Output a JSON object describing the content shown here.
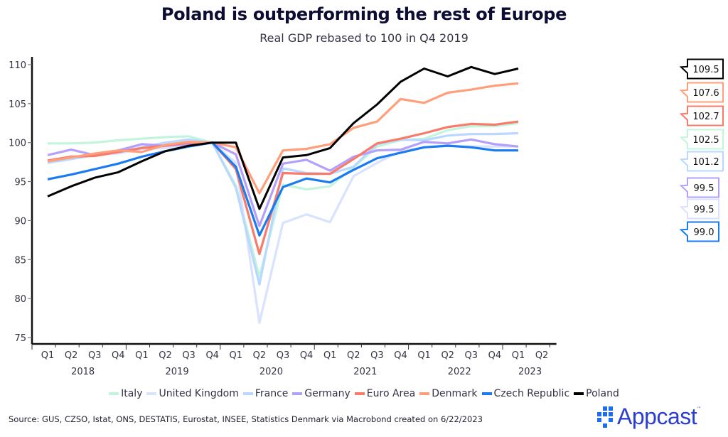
{
  "title": "Poland is outperforming the rest of Europe",
  "subtitle": "Real GDP rebased to 100 in Q4 2019",
  "source": "Source: GUS, CZSO, Istat, ONS, DESTATIS, Eurostat, INSEE, Statistics Denmark via Macrobond created on 6/22/2023",
  "logo": {
    "text": "Appcast",
    "tm": "™"
  },
  "chart_data": {
    "type": "line",
    "title": "Poland is outperforming the rest of Europe",
    "subtitle": "Real GDP rebased to 100 in Q4 2019",
    "xlabel": "",
    "ylabel": "",
    "ylim": [
      75,
      110
    ],
    "yticks": [
      75,
      80,
      85,
      90,
      95,
      100,
      105,
      110
    ],
    "grid": false,
    "legend_position": "bottom",
    "x": [
      "Q1 2018",
      "Q2 2018",
      "Q3 2018",
      "Q4 2018",
      "Q1 2019",
      "Q2 2019",
      "Q3 2019",
      "Q4 2019",
      "Q1 2020",
      "Q2 2020",
      "Q3 2020",
      "Q4 2020",
      "Q1 2021",
      "Q2 2021",
      "Q3 2021",
      "Q4 2021",
      "Q1 2022",
      "Q2 2022",
      "Q3 2022",
      "Q4 2022",
      "Q1 2023"
    ],
    "quarter_labels": [
      "Q1",
      "Q2",
      "Q3",
      "Q4",
      "Q1",
      "Q2",
      "Q3",
      "Q4",
      "Q1",
      "Q2",
      "Q3",
      "Q4",
      "Q1",
      "Q2",
      "Q3",
      "Q4",
      "Q1",
      "Q2",
      "Q3",
      "Q4",
      "Q1",
      "Q2"
    ],
    "year_labels": [
      "2018",
      "2019",
      "2020",
      "2021",
      "2022",
      "2023"
    ],
    "series": [
      {
        "name": "Italy",
        "color": "#c2f5dc",
        "end_label": "102.5",
        "values": [
          99.9,
          99.9,
          100.0,
          100.3,
          100.5,
          100.7,
          100.8,
          100,
          94.5,
          82.8,
          94.6,
          94.0,
          94.4,
          96.8,
          99.5,
          100.3,
          100.5,
          101.6,
          102.1,
          102.1,
          102.5
        ]
      },
      {
        "name": "United Kingdom",
        "color": "#d9e2ff",
        "end_label": "99.5",
        "values": [
          97.5,
          97.9,
          98.4,
          98.6,
          99.2,
          99.3,
          99.7,
          100,
          97.4,
          76.9,
          89.7,
          90.8,
          89.8,
          95.7,
          97.4,
          98.9,
          99.4,
          99.6,
          99.5,
          99.5,
          99.5
        ]
      },
      {
        "name": "France",
        "color": "#b9d8ff",
        "end_label": "101.2",
        "values": [
          97.4,
          97.9,
          98.4,
          98.8,
          99.4,
          100.0,
          100.4,
          100,
          94.2,
          81.8,
          96.7,
          96.1,
          96.0,
          96.9,
          99.8,
          100.4,
          100.3,
          100.9,
          101.1,
          101.1,
          101.2
        ]
      },
      {
        "name": "Germany",
        "color": "#b4a0fa",
        "end_label": "99.5",
        "values": [
          98.4,
          99.1,
          98.4,
          99.0,
          99.8,
          99.6,
          99.8,
          100,
          98.5,
          89.3,
          97.3,
          97.8,
          96.4,
          98.2,
          99.0,
          99.1,
          100.1,
          99.9,
          100.4,
          99.8,
          99.5
        ]
      },
      {
        "name": "Euro Area",
        "color": "#fa7a6a",
        "end_label": "102.7",
        "values": [
          97.7,
          98.2,
          98.3,
          98.8,
          99.3,
          99.6,
          100.0,
          100,
          96.6,
          85.7,
          96.1,
          96.0,
          96.0,
          97.9,
          99.9,
          100.5,
          101.2,
          102.0,
          102.4,
          102.3,
          102.7
        ]
      },
      {
        "name": "Denmark",
        "color": "#ff9e7a",
        "end_label": "107.6",
        "values": [
          97.6,
          98.1,
          98.6,
          99.0,
          98.8,
          99.7,
          100.1,
          100,
          99.4,
          93.5,
          99.0,
          99.2,
          99.8,
          101.9,
          102.7,
          105.6,
          105.1,
          106.4,
          106.8,
          107.3,
          107.6
        ]
      },
      {
        "name": "Czech Republic",
        "color": "#1a7af0",
        "end_label": "99.0",
        "values": [
          95.3,
          95.9,
          96.6,
          97.3,
          98.2,
          98.9,
          99.5,
          100,
          96.9,
          88.1,
          94.3,
          95.4,
          94.9,
          96.5,
          98.0,
          98.7,
          99.4,
          99.6,
          99.4,
          99.0,
          99.0
        ]
      },
      {
        "name": "Poland",
        "color": "#000000",
        "end_label": "109.5",
        "values": [
          93.1,
          94.4,
          95.5,
          96.2,
          97.6,
          98.9,
          99.6,
          100,
          100,
          91.5,
          98.1,
          98.4,
          99.3,
          102.5,
          104.9,
          107.8,
          109.5,
          108.5,
          109.7,
          108.8,
          109.5
        ]
      }
    ],
    "end_label_order": [
      "Poland",
      "Denmark",
      "Euro Area",
      "Italy",
      "France",
      "Germany",
      "United Kingdom",
      "Czech Republic"
    ]
  }
}
